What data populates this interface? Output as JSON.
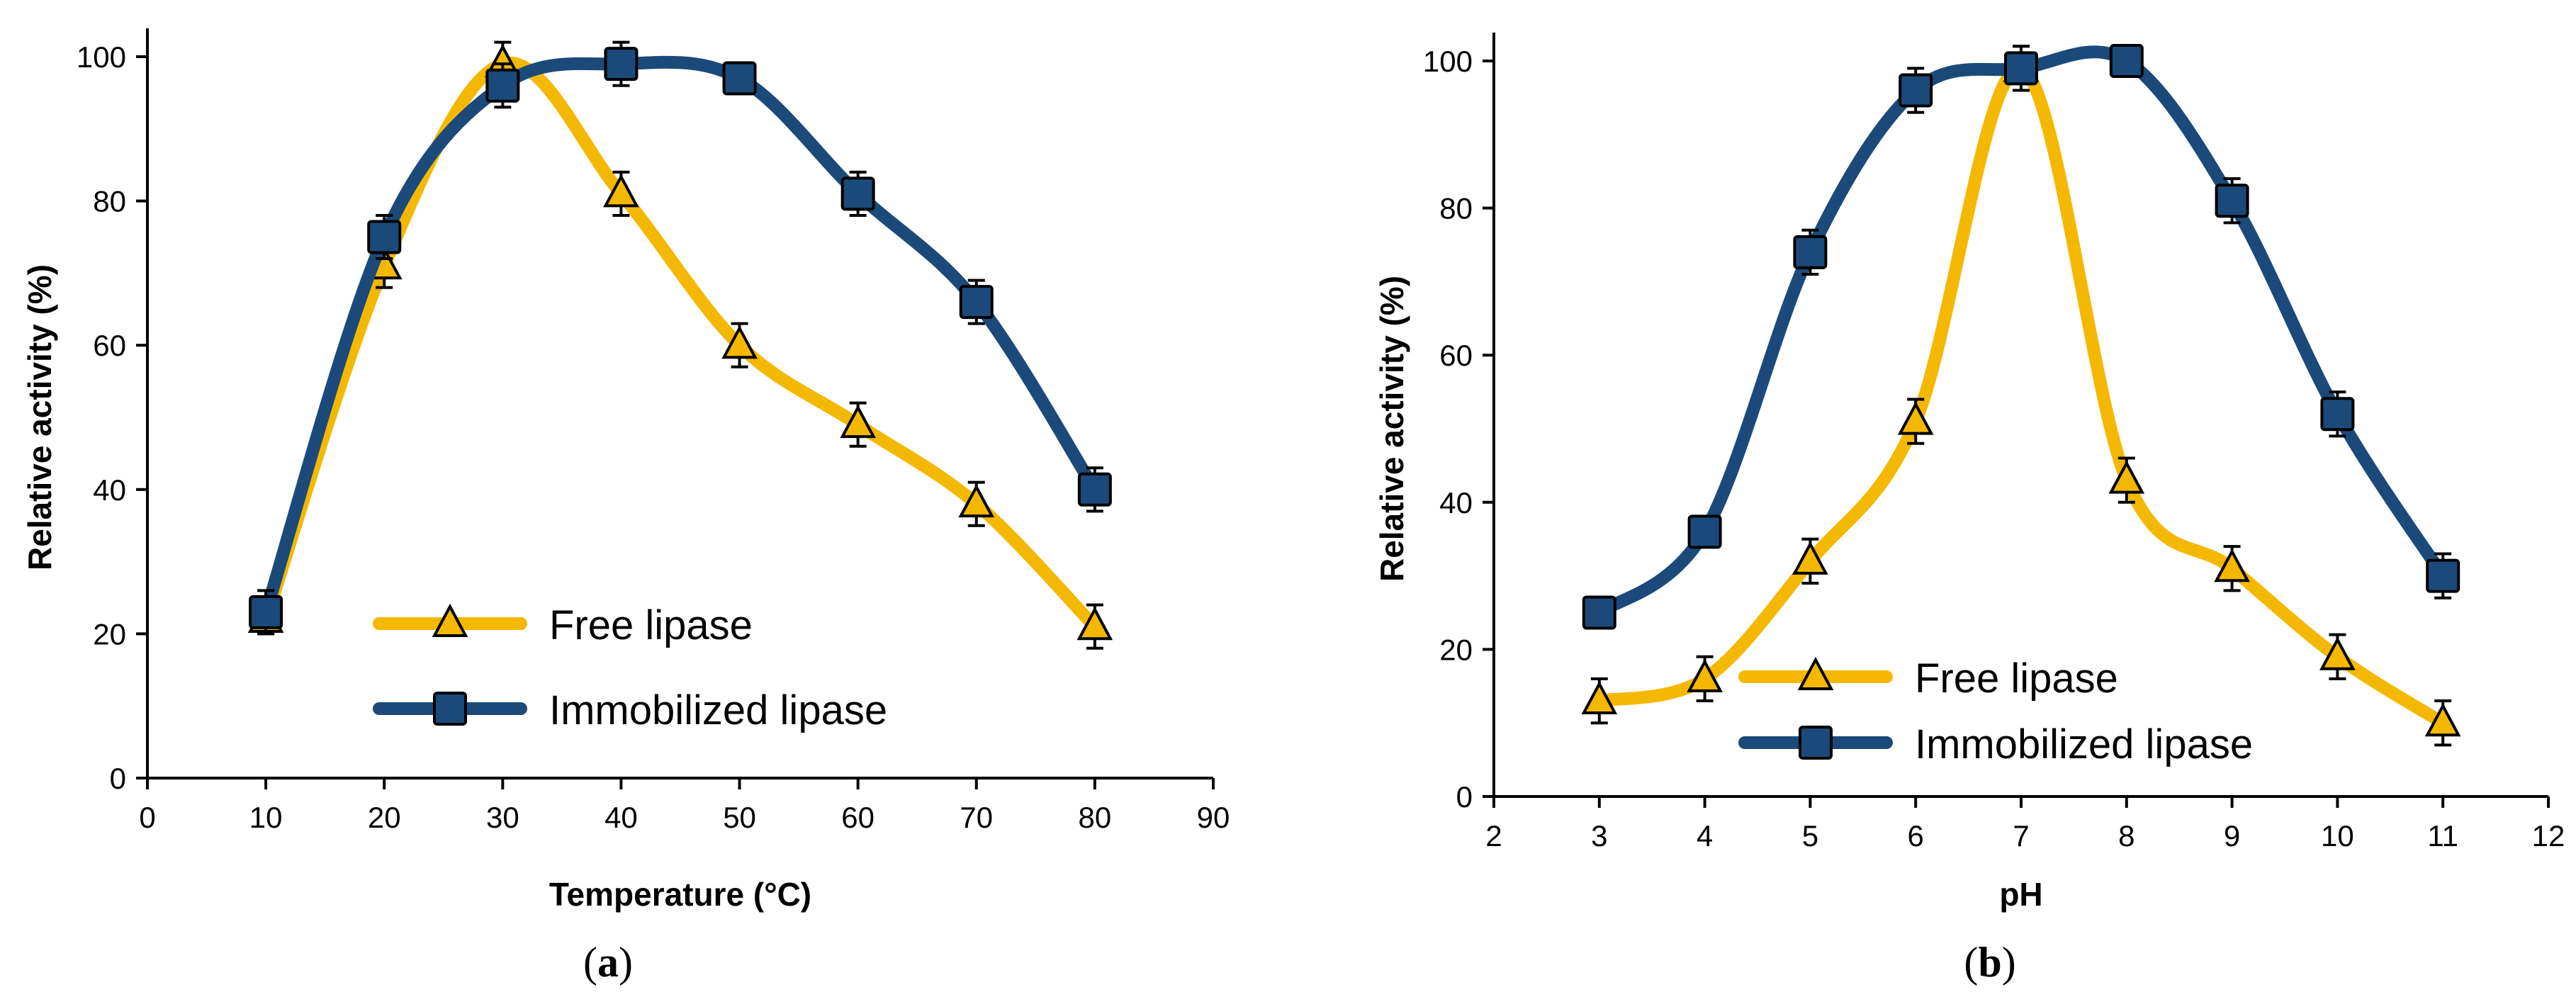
{
  "colors": {
    "free": "#F5B800",
    "immobilized": "#1B4A7A",
    "axis": "#000000"
  },
  "chart_data": [
    {
      "type": "line",
      "panel_label": "a",
      "xlabel": "Temperature (°C)",
      "ylabel": "Relative activity (%)",
      "xlim": [
        0,
        90
      ],
      "ylim": [
        0,
        100
      ],
      "xticks": [
        0,
        10,
        20,
        30,
        40,
        50,
        60,
        70,
        80,
        90
      ],
      "yticks": [
        0,
        20,
        40,
        60,
        80,
        100
      ],
      "legend_position": "bottom-center",
      "series": [
        {
          "name": "Free lipase",
          "marker": "triangle",
          "x": [
            10,
            20,
            30,
            40,
            50,
            60,
            70,
            80
          ],
          "y": [
            22,
            71,
            99,
            81,
            60,
            49,
            38,
            21
          ],
          "err": [
            2,
            3,
            3,
            3,
            3,
            3,
            3,
            3
          ]
        },
        {
          "name": "Immobilized lipase",
          "marker": "square",
          "x": [
            10,
            20,
            30,
            40,
            50,
            60,
            70,
            80
          ],
          "y": [
            23,
            75,
            96,
            99,
            97,
            81,
            66,
            40
          ],
          "err": [
            3,
            3,
            3,
            3,
            2,
            3,
            3,
            3
          ]
        }
      ]
    },
    {
      "type": "line",
      "panel_label": "b",
      "xlabel": "pH",
      "ylabel": "Relative activity (%)",
      "xlim": [
        2,
        12
      ],
      "ylim": [
        0,
        100
      ],
      "xticks": [
        2,
        3,
        4,
        5,
        6,
        7,
        8,
        9,
        10,
        11,
        12
      ],
      "yticks": [
        0,
        20,
        40,
        60,
        80,
        100
      ],
      "legend_position": "bottom-center",
      "series": [
        {
          "name": "Free lipase",
          "marker": "triangle",
          "x": [
            3,
            4,
            5,
            6,
            7,
            8,
            9,
            10,
            11
          ],
          "y": [
            13,
            16,
            32,
            51,
            99,
            43,
            31,
            19,
            10
          ],
          "err": [
            3,
            3,
            3,
            3,
            3,
            3,
            3,
            3,
            3
          ]
        },
        {
          "name": "Immobilized lipase",
          "marker": "square",
          "x": [
            3,
            4,
            5,
            6,
            7,
            8,
            9,
            10,
            11
          ],
          "y": [
            25,
            36,
            74,
            96,
            99,
            100,
            81,
            52,
            30
          ],
          "err": [
            2,
            2,
            3,
            3,
            3,
            2,
            3,
            3,
            3
          ]
        }
      ]
    }
  ]
}
